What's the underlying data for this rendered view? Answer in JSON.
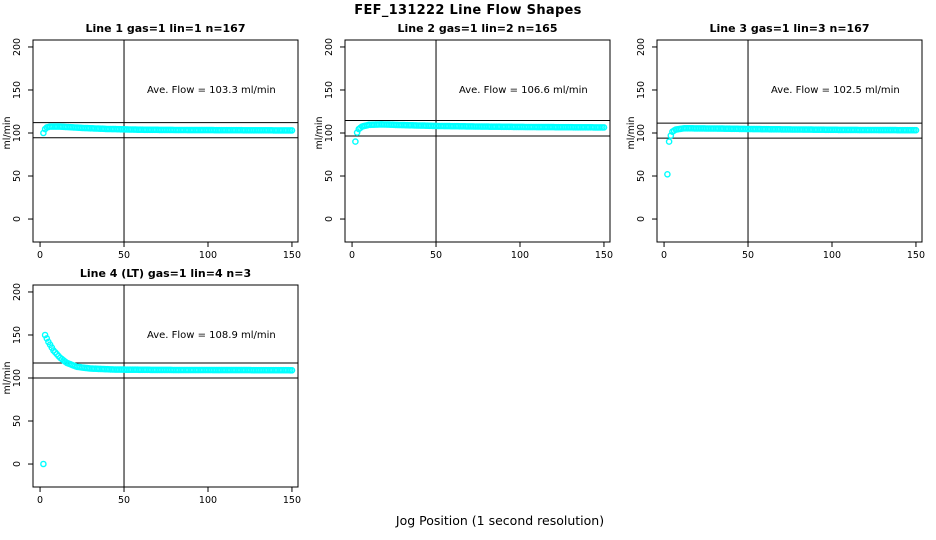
{
  "figure": {
    "title": "FEF_131222  Line Flow Shapes",
    "xlabel": "Jog Position (1 second resolution)",
    "background": "#ffffff",
    "point_color": "#00ffff",
    "axis_color": "#000000"
  },
  "chart_data": [
    {
      "type": "scatter",
      "title": "Line 1 gas=1 lin=1 n=167",
      "line": 1,
      "gas": 1,
      "lin": 1,
      "n": 167,
      "annotation": "Ave. Flow =  103.3  ml/min",
      "ave_flow": 103.3,
      "ylabel": "ml/min",
      "xticks": [
        0,
        50,
        100,
        150
      ],
      "yticks": [
        0,
        50,
        100,
        150,
        200
      ],
      "xlim": [
        -4.2,
        153.6
      ],
      "ylim": [
        -26.7,
        208.1
      ],
      "vline_x": 50,
      "hlines": [
        112,
        94.5
      ],
      "grid": false,
      "marker": "open-circle",
      "outlier_points": [],
      "curve_points": [
        [
          2,
          100
        ],
        [
          3,
          104.5
        ],
        [
          4,
          106.5
        ],
        [
          6,
          107.5
        ],
        [
          12,
          107.4
        ],
        [
          25,
          105.9
        ],
        [
          40,
          104.7
        ],
        [
          60,
          103.8
        ],
        [
          90,
          103.4
        ],
        [
          120,
          103.2
        ],
        [
          150,
          103.0
        ]
      ]
    },
    {
      "type": "scatter",
      "title": "Line 2 gas=1 lin=2 n=165",
      "line": 2,
      "gas": 1,
      "lin": 2,
      "n": 165,
      "annotation": "Ave. Flow =  106.6  ml/min",
      "ave_flow": 106.6,
      "ylabel": "ml/min",
      "xticks": [
        0,
        50,
        100,
        150
      ],
      "yticks": [
        0,
        50,
        100,
        150,
        200
      ],
      "xlim": [
        -4.2,
        153.6
      ],
      "ylim": [
        -26.7,
        208.1
      ],
      "vline_x": 50,
      "hlines": [
        114.5,
        96.5
      ],
      "grid": false,
      "marker": "open-circle",
      "outlier_points": [
        [
          2,
          90
        ]
      ],
      "curve_points": [
        [
          3,
          100.5
        ],
        [
          4,
          104.5
        ],
        [
          6,
          107.5
        ],
        [
          10,
          109.5
        ],
        [
          18,
          110
        ],
        [
          30,
          109.2
        ],
        [
          50,
          108.2
        ],
        [
          80,
          107.4
        ],
        [
          110,
          106.9
        ],
        [
          150,
          106.5
        ]
      ]
    },
    {
      "type": "scatter",
      "title": "Line 3 gas=1 lin=3 n=167",
      "line": 3,
      "gas": 1,
      "lin": 3,
      "n": 167,
      "annotation": "Ave. Flow =  102.5  ml/min",
      "ave_flow": 102.5,
      "ylabel": "ml/min",
      "xticks": [
        0,
        50,
        100,
        150
      ],
      "yticks": [
        0,
        50,
        100,
        150,
        200
      ],
      "xlim": [
        -4.2,
        153.6
      ],
      "ylim": [
        -26.7,
        208.1
      ],
      "vline_x": 50,
      "hlines": [
        111.5,
        94
      ],
      "grid": false,
      "marker": "open-circle",
      "outlier_points": [
        [
          2,
          52
        ],
        [
          3,
          90
        ]
      ],
      "curve_points": [
        [
          4,
          97
        ],
        [
          5,
          101.5
        ],
        [
          7,
          104
        ],
        [
          12,
          105.5
        ],
        [
          30,
          105.2
        ],
        [
          60,
          104.4
        ],
        [
          100,
          103.7
        ],
        [
          150,
          103.2
        ]
      ]
    },
    {
      "type": "scatter",
      "title": "Line 4 (LT) gas=1 lin=4 n=3",
      "line": 4,
      "gas": 1,
      "lin": 4,
      "n": 3,
      "annotation": "Ave. Flow =  108.9  ml/min",
      "ave_flow": 108.9,
      "ylabel": "ml/min",
      "xticks": [
        0,
        50,
        100,
        150
      ],
      "yticks": [
        0,
        50,
        100,
        150,
        200
      ],
      "xlim": [
        -4.2,
        153.6
      ],
      "ylim": [
        -26.7,
        208.1
      ],
      "vline_x": 50,
      "hlines": [
        117.5,
        100
      ],
      "grid": false,
      "marker": "open-circle",
      "outlier_points": [
        [
          2,
          0
        ]
      ],
      "curve_points": [
        [
          3,
          150
        ],
        [
          5,
          142
        ],
        [
          8,
          132
        ],
        [
          12,
          123.5
        ],
        [
          16,
          117.5
        ],
        [
          22,
          113
        ],
        [
          30,
          111
        ],
        [
          45,
          109.8
        ],
        [
          70,
          109.4
        ],
        [
          110,
          109.2
        ],
        [
          150,
          109.0
        ]
      ]
    }
  ]
}
